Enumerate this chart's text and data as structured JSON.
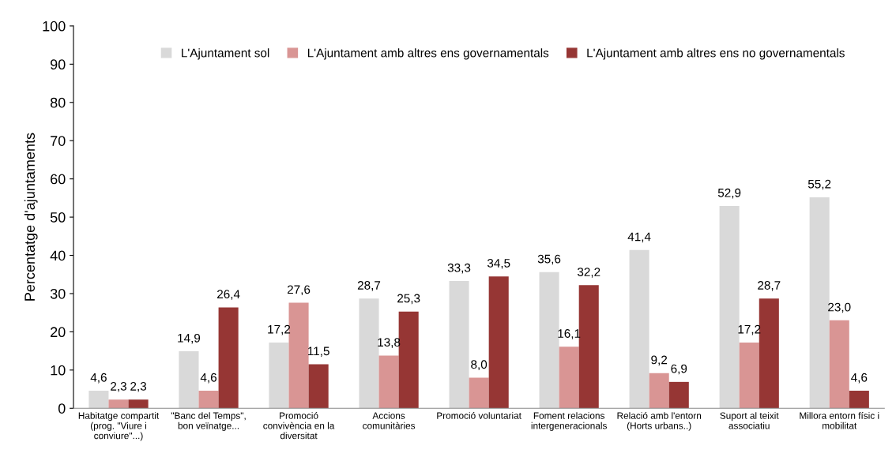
{
  "chart_data": {
    "type": "bar",
    "ylabel": "Percentatge d'ajuntaments",
    "categories": [
      "Habitatge compartit\n(prog. \"Viure i\nconviure\"...)",
      "\"Banc del Temps\",\nbon veïnatge...",
      "Promoció\nconvivència en la\ndiversitat",
      "Accions\ncomunitàries",
      "Promoció voluntariat",
      "Foment relacions\nintergeneracionals",
      "Relació amb l'entorn\n(Horts urbans..)",
      "Suport al teixit\nassociatiu",
      "Millora entorn físic i\nmobilitat"
    ],
    "series": [
      {
        "name": "L'Ajuntament sol",
        "color": "#d9d9d9",
        "values": [
          4.6,
          14.9,
          17.2,
          28.7,
          33.3,
          35.6,
          41.4,
          52.9,
          55.2
        ],
        "value_labels": [
          "4,6",
          "14,9",
          "17,2",
          "28,7",
          "33,3",
          "35,6",
          "41,4",
          "52,9",
          "55,2"
        ]
      },
      {
        "name": "L'Ajuntament amb altres ens governamentals",
        "color": "#d99594",
        "values": [
          2.3,
          4.6,
          27.6,
          13.8,
          8.0,
          16.1,
          9.2,
          17.2,
          23.0
        ],
        "value_labels": [
          "2,3",
          "4,6",
          "27,6",
          "13,8",
          "8,0",
          "16,1",
          "9,2",
          "17,2",
          "23,0"
        ]
      },
      {
        "name": "L'Ajuntament amb altres ens no governamentals",
        "color": "#963634",
        "values": [
          2.3,
          26.4,
          11.5,
          25.3,
          34.5,
          32.2,
          6.9,
          28.7,
          4.6
        ],
        "value_labels": [
          "2,3",
          "26,4",
          "11,5",
          "25,3",
          "34,5",
          "32,2",
          "6,9",
          "28,7",
          "4,6"
        ]
      }
    ],
    "ylim": [
      0,
      100
    ],
    "yticks": [
      0,
      10,
      20,
      30,
      40,
      50,
      60,
      70,
      80,
      90,
      100
    ],
    "grid": false,
    "legend": "top"
  }
}
